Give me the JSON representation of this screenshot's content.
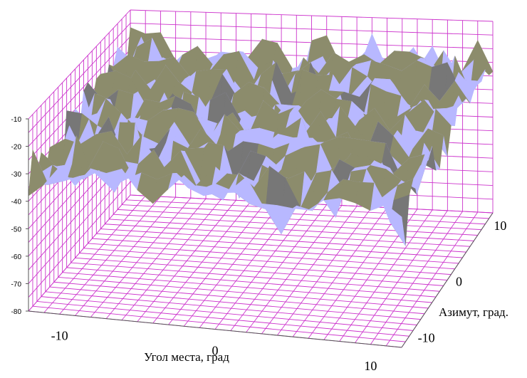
{
  "chart_data": {
    "type": "surface",
    "title": "",
    "xlabel": "Угол места, град",
    "ylabel": "Азимут, град.",
    "zlabel": "",
    "x_ticks": [
      "-10",
      "0",
      "10"
    ],
    "y_ticks": [
      "-10",
      "0",
      "10"
    ],
    "z_ticks": [
      "-10",
      "-20",
      "-30",
      "-40",
      "-50",
      "-60",
      "-70",
      "-80"
    ],
    "xlim": [
      -12,
      12
    ],
    "ylim": [
      -12,
      12
    ],
    "zlim": [
      -80,
      -10
    ],
    "grid": true,
    "colors": {
      "grid": "#cc33cc",
      "surface_top": "#b8b8ff",
      "surface_side": "#8c8c6c",
      "surface_shadow": "#777777"
    },
    "surface": {
      "description_values": "approximate amplitude (z) over elevation x azimuth grid, 1 deg step",
      "typical_range": [
        -45,
        -10
      ],
      "mean": -24
    }
  }
}
